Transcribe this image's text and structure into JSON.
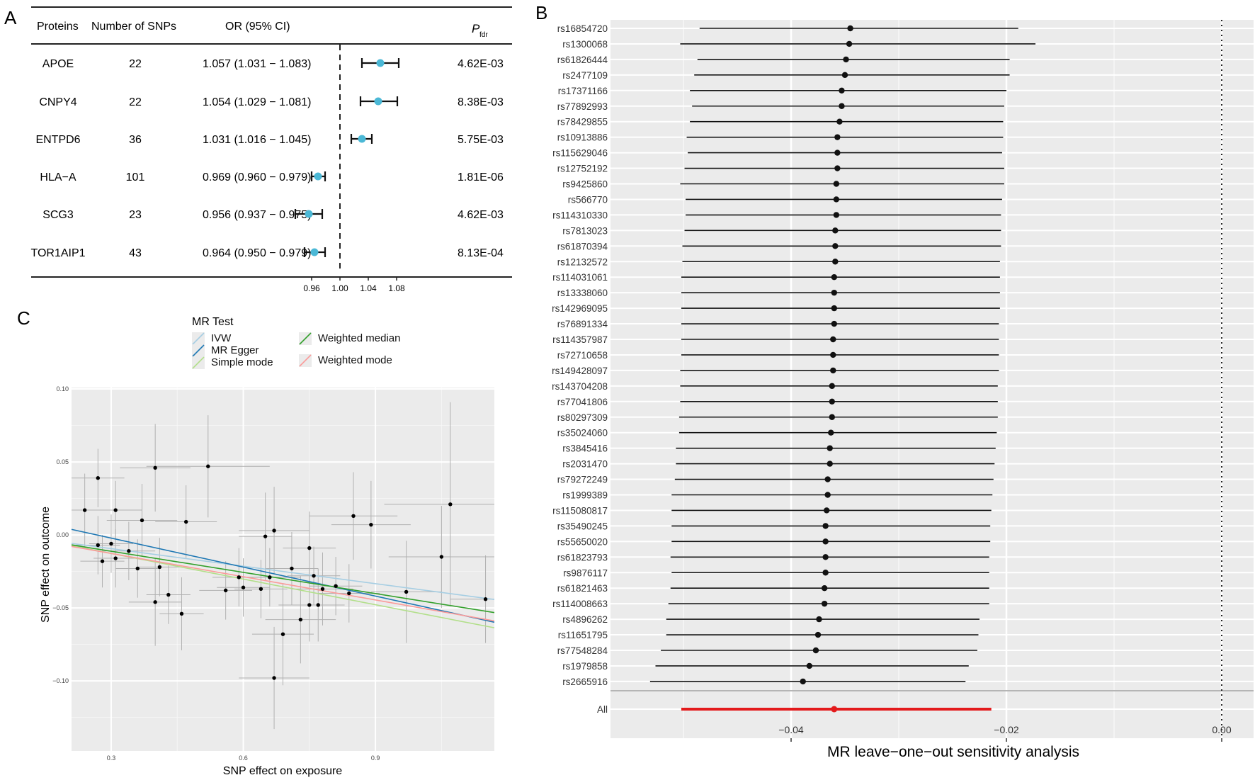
{
  "panels": {
    "a": "A",
    "b": "B",
    "c": "C"
  },
  "panel_a": {
    "headers": {
      "proteins": "Proteins",
      "nsnps": "Number of SNPs",
      "or": "OR (95% CI)",
      "p_main": "P",
      "p_sub": "fdr"
    },
    "ref_value": 1.0,
    "ticks": [
      "0.96",
      "1.00",
      "1.04",
      "1.08"
    ],
    "marker_color": "#4bb8d6"
  },
  "panel_b": {
    "all_label": "All",
    "all_color": "#e31a1c",
    "ref_value": 0.0
  },
  "panel_c": {
    "legend_title": "MR Test",
    "methods": [
      {
        "name": "IVW",
        "color": "#a6cee3"
      },
      {
        "name": "MR Egger",
        "color": "#1f78b4"
      },
      {
        "name": "Simple mode",
        "color": "#b2df8a"
      },
      {
        "name": "Weighted median",
        "color": "#33a02c"
      },
      {
        "name": "Weighted mode",
        "color": "#fb9a99"
      }
    ]
  },
  "chart_data": [
    {
      "id": "A",
      "type": "table",
      "title": "",
      "xlabel": "",
      "ylabel": "",
      "xlim": [
        0.915,
        1.185
      ],
      "columns": [
        "Proteins",
        "Number of SNPs",
        "OR (95% CI)",
        "Pfdr"
      ],
      "rows": [
        {
          "protein": "APOE",
          "nsnps": "22",
          "ci_text": "1.057 (1.031 − 1.083)",
          "or": 1.057,
          "lo": 1.031,
          "hi": 1.083,
          "p": "4.62E-03"
        },
        {
          "protein": "CNPY4",
          "nsnps": "22",
          "ci_text": "1.054 (1.029 − 1.081)",
          "or": 1.054,
          "lo": 1.029,
          "hi": 1.081,
          "p": "8.38E-03"
        },
        {
          "protein": "ENTPD6",
          "nsnps": "36",
          "ci_text": "1.031 (1.016 − 1.045)",
          "or": 1.031,
          "lo": 1.016,
          "hi": 1.045,
          "p": "5.75E-03"
        },
        {
          "protein": "HLA−A",
          "nsnps": "101",
          "ci_text": "0.969 (0.960 − 0.979)",
          "or": 0.969,
          "lo": 0.96,
          "hi": 0.979,
          "p": "1.81E-06"
        },
        {
          "protein": "SCG3",
          "nsnps": "23",
          "ci_text": "0.956 (0.937 − 0.975)",
          "or": 0.956,
          "lo": 0.937,
          "hi": 0.975,
          "p": "4.62E-03"
        },
        {
          "protein": "TOR1AIP1",
          "nsnps": "43",
          "ci_text": "0.964 (0.950 − 0.979)",
          "or": 0.964,
          "lo": 0.95,
          "hi": 0.979,
          "p": "8.13E-04"
        }
      ]
    },
    {
      "id": "B",
      "type": "scatter",
      "title": "",
      "xlabel": "MR leave−one−out sensitivity analysis",
      "ylabel": "",
      "xlim": [
        -0.0561,
        0.0026
      ],
      "x_ticks": [
        -0.04,
        -0.02,
        0.0
      ],
      "x_tick_labels": [
        "−0.04",
        "−0.02",
        "0.00"
      ],
      "snps": [
        {
          "name": "rs16854720",
          "b": -0.0345,
          "lo": -0.0485,
          "hi": -0.0189
        },
        {
          "name": "rs1300068",
          "b": -0.0346,
          "lo": -0.0503,
          "hi": -0.0173
        },
        {
          "name": "rs61826444",
          "b": -0.0349,
          "lo": -0.0487,
          "hi": -0.0197
        },
        {
          "name": "rs2477109",
          "b": -0.035,
          "lo": -0.049,
          "hi": -0.0197
        },
        {
          "name": "rs17371166",
          "b": -0.0353,
          "lo": -0.0494,
          "hi": -0.02
        },
        {
          "name": "rs77892993",
          "b": -0.0353,
          "lo": -0.0492,
          "hi": -0.0202
        },
        {
          "name": "rs78429855",
          "b": -0.0355,
          "lo": -0.0494,
          "hi": -0.0203
        },
        {
          "name": "rs10913886",
          "b": -0.0357,
          "lo": -0.0497,
          "hi": -0.0203
        },
        {
          "name": "rs115629046",
          "b": -0.0357,
          "lo": -0.0496,
          "hi": -0.0204
        },
        {
          "name": "rs12752192",
          "b": -0.0357,
          "lo": -0.0499,
          "hi": -0.0202
        },
        {
          "name": "rs9425860",
          "b": -0.0358,
          "lo": -0.0503,
          "hi": -0.0202
        },
        {
          "name": "rs566770",
          "b": -0.0358,
          "lo": -0.0498,
          "hi": -0.0204
        },
        {
          "name": "rs114310330",
          "b": -0.0358,
          "lo": -0.0498,
          "hi": -0.0205
        },
        {
          "name": "rs7813023",
          "b": -0.0359,
          "lo": -0.0499,
          "hi": -0.0205
        },
        {
          "name": "rs61870394",
          "b": -0.0359,
          "lo": -0.0501,
          "hi": -0.0205
        },
        {
          "name": "rs12132572",
          "b": -0.0359,
          "lo": -0.0501,
          "hi": -0.0206
        },
        {
          "name": "rs114031061",
          "b": -0.036,
          "lo": -0.0502,
          "hi": -0.0206
        },
        {
          "name": "rs13338060",
          "b": -0.036,
          "lo": -0.0502,
          "hi": -0.0206
        },
        {
          "name": "rs142969095",
          "b": -0.036,
          "lo": -0.0502,
          "hi": -0.0206
        },
        {
          "name": "rs76891334",
          "b": -0.036,
          "lo": -0.0502,
          "hi": -0.0207
        },
        {
          "name": "rs114357987",
          "b": -0.0361,
          "lo": -0.0502,
          "hi": -0.0207
        },
        {
          "name": "rs72710658",
          "b": -0.0361,
          "lo": -0.0502,
          "hi": -0.0207
        },
        {
          "name": "rs149428097",
          "b": -0.0361,
          "lo": -0.0503,
          "hi": -0.0207
        },
        {
          "name": "rs143704208",
          "b": -0.0362,
          "lo": -0.0503,
          "hi": -0.0208
        },
        {
          "name": "rs77041806",
          "b": -0.0362,
          "lo": -0.0503,
          "hi": -0.0208
        },
        {
          "name": "rs80297309",
          "b": -0.0362,
          "lo": -0.0504,
          "hi": -0.0208
        },
        {
          "name": "rs35024060",
          "b": -0.0363,
          "lo": -0.0504,
          "hi": -0.0209
        },
        {
          "name": "rs3845416",
          "b": -0.0364,
          "lo": -0.0507,
          "hi": -0.021
        },
        {
          "name": "rs2031470",
          "b": -0.0364,
          "lo": -0.0507,
          "hi": -0.0211
        },
        {
          "name": "rs79272249",
          "b": -0.0366,
          "lo": -0.0508,
          "hi": -0.0212
        },
        {
          "name": "rs1999389",
          "b": -0.0366,
          "lo": -0.0511,
          "hi": -0.0213
        },
        {
          "name": "rs115080817",
          "b": -0.0367,
          "lo": -0.0511,
          "hi": -0.0214
        },
        {
          "name": "rs35490245",
          "b": -0.0368,
          "lo": -0.0511,
          "hi": -0.0215
        },
        {
          "name": "rs55650020",
          "b": -0.0368,
          "lo": -0.0511,
          "hi": -0.0215
        },
        {
          "name": "rs61823793",
          "b": -0.0368,
          "lo": -0.0512,
          "hi": -0.0216
        },
        {
          "name": "rs9876117",
          "b": -0.0368,
          "lo": -0.0511,
          "hi": -0.0216
        },
        {
          "name": "rs61821463",
          "b": -0.0369,
          "lo": -0.0512,
          "hi": -0.0216
        },
        {
          "name": "rs114008663",
          "b": -0.0369,
          "lo": -0.0514,
          "hi": -0.0216
        },
        {
          "name": "rs4896262",
          "b": -0.0374,
          "lo": -0.0516,
          "hi": -0.0225
        },
        {
          "name": "rs11651795",
          "b": -0.0375,
          "lo": -0.0516,
          "hi": -0.0226
        },
        {
          "name": "rs77548284",
          "b": -0.0377,
          "lo": -0.0521,
          "hi": -0.0227
        },
        {
          "name": "rs1979858",
          "b": -0.0383,
          "lo": -0.0526,
          "hi": -0.0235
        },
        {
          "name": "rs2665916",
          "b": -0.0389,
          "lo": -0.0531,
          "hi": -0.0238
        }
      ],
      "overall": {
        "name": "All",
        "b": -0.036,
        "lo": -0.0502,
        "hi": -0.0214
      }
    },
    {
      "id": "C",
      "type": "scatter",
      "title": "",
      "xlabel": "SNP effect on exposure",
      "ylabel": "SNP effect on outcome",
      "xlim": [
        0.21,
        1.17
      ],
      "ylim": [
        -0.148,
        0.101
      ],
      "x_ticks": [
        0.3,
        0.6,
        0.9
      ],
      "x_tick_labels": [
        "0.3",
        "0.6",
        "0.9"
      ],
      "y_ticks": [
        -0.1,
        -0.05,
        0.0,
        0.05,
        0.1
      ],
      "y_tick_labels": [
        "−0.10",
        "−0.05",
        "0.00",
        "0.05",
        "0.10"
      ],
      "points": [
        {
          "x": 0.24,
          "y": 0.017,
          "xe": 0.07,
          "ye": 0.025
        },
        {
          "x": 0.27,
          "y": 0.039,
          "xe": 0.06,
          "ye": 0.02
        },
        {
          "x": 0.27,
          "y": -0.007,
          "xe": 0.05,
          "ye": 0.02
        },
        {
          "x": 0.28,
          "y": -0.018,
          "xe": 0.05,
          "ye": 0.018
        },
        {
          "x": 0.3,
          "y": -0.006,
          "xe": 0.05,
          "ye": 0.02
        },
        {
          "x": 0.31,
          "y": 0.017,
          "xe": 0.06,
          "ye": 0.02
        },
        {
          "x": 0.31,
          "y": -0.016,
          "xe": 0.05,
          "ye": 0.02
        },
        {
          "x": 0.34,
          "y": -0.011,
          "xe": 0.06,
          "ye": 0.02
        },
        {
          "x": 0.36,
          "y": -0.023,
          "xe": 0.05,
          "ye": 0.02
        },
        {
          "x": 0.37,
          "y": 0.01,
          "xe": 0.08,
          "ye": 0.025
        },
        {
          "x": 0.4,
          "y": 0.046,
          "xe": 0.08,
          "ye": 0.03
        },
        {
          "x": 0.4,
          "y": -0.046,
          "xe": 0.06,
          "ye": 0.03
        },
        {
          "x": 0.41,
          "y": -0.022,
          "xe": 0.05,
          "ye": 0.02
        },
        {
          "x": 0.43,
          "y": -0.041,
          "xe": 0.05,
          "ye": 0.02
        },
        {
          "x": 0.46,
          "y": -0.054,
          "xe": 0.05,
          "ye": 0.025
        },
        {
          "x": 0.47,
          "y": 0.009,
          "xe": 0.07,
          "ye": 0.025
        },
        {
          "x": 0.52,
          "y": 0.047,
          "xe": 0.14,
          "ye": 0.035
        },
        {
          "x": 0.56,
          "y": -0.038,
          "xe": 0.06,
          "ye": 0.02
        },
        {
          "x": 0.59,
          "y": -0.029,
          "xe": 0.06,
          "ye": 0.02
        },
        {
          "x": 0.6,
          "y": -0.036,
          "xe": 0.06,
          "ye": 0.02
        },
        {
          "x": 0.64,
          "y": -0.037,
          "xe": 0.06,
          "ye": 0.02
        },
        {
          "x": 0.65,
          "y": -0.001,
          "xe": 0.06,
          "ye": 0.03
        },
        {
          "x": 0.66,
          "y": -0.029,
          "xe": 0.07,
          "ye": 0.02
        },
        {
          "x": 0.67,
          "y": 0.003,
          "xe": 0.08,
          "ye": 0.03
        },
        {
          "x": 0.67,
          "y": -0.098,
          "xe": 0.08,
          "ye": 0.035
        },
        {
          "x": 0.69,
          "y": -0.068,
          "xe": 0.07,
          "ye": 0.035
        },
        {
          "x": 0.71,
          "y": -0.023,
          "xe": 0.06,
          "ye": 0.025
        },
        {
          "x": 0.73,
          "y": -0.058,
          "xe": 0.08,
          "ye": 0.03
        },
        {
          "x": 0.75,
          "y": -0.009,
          "xe": 0.06,
          "ye": 0.025
        },
        {
          "x": 0.75,
          "y": -0.048,
          "xe": 0.07,
          "ye": 0.025
        },
        {
          "x": 0.76,
          "y": -0.028,
          "xe": 0.06,
          "ye": 0.02
        },
        {
          "x": 0.77,
          "y": -0.048,
          "xe": 0.06,
          "ye": 0.025
        },
        {
          "x": 0.78,
          "y": -0.037,
          "xe": 0.07,
          "ye": 0.025
        },
        {
          "x": 0.81,
          "y": -0.035,
          "xe": 0.06,
          "ye": 0.02
        },
        {
          "x": 0.84,
          "y": -0.04,
          "xe": 0.07,
          "ye": 0.02
        },
        {
          "x": 0.85,
          "y": 0.013,
          "xe": 0.1,
          "ye": 0.03
        },
        {
          "x": 0.89,
          "y": 0.007,
          "xe": 0.09,
          "ye": 0.03
        },
        {
          "x": 0.97,
          "y": -0.039,
          "xe": 0.08,
          "ye": 0.035
        },
        {
          "x": 1.05,
          "y": -0.015,
          "xe": 0.12,
          "ye": 0.035
        },
        {
          "x": 1.07,
          "y": 0.021,
          "xe": 0.15,
          "ye": 0.07
        },
        {
          "x": 1.15,
          "y": -0.044,
          "xe": 0.08,
          "ye": 0.03
        }
      ],
      "lines": [
        {
          "name": "IVW",
          "x": [
            0.21,
            1.17
          ],
          "y": [
            -0.0058,
            -0.0442
          ]
        },
        {
          "name": "MR Egger",
          "x": [
            0.21,
            1.17
          ],
          "y": [
            0.0038,
            -0.0598
          ]
        },
        {
          "name": "Simple mode",
          "x": [
            0.21,
            1.17
          ],
          "y": [
            -0.0074,
            -0.0636
          ]
        },
        {
          "name": "Weighted median",
          "x": [
            0.21,
            1.17
          ],
          "y": [
            -0.0068,
            -0.0532
          ]
        },
        {
          "name": "Weighted mode",
          "x": [
            0.21,
            1.17
          ],
          "y": [
            -0.0079,
            -0.0589
          ]
        }
      ]
    }
  ]
}
